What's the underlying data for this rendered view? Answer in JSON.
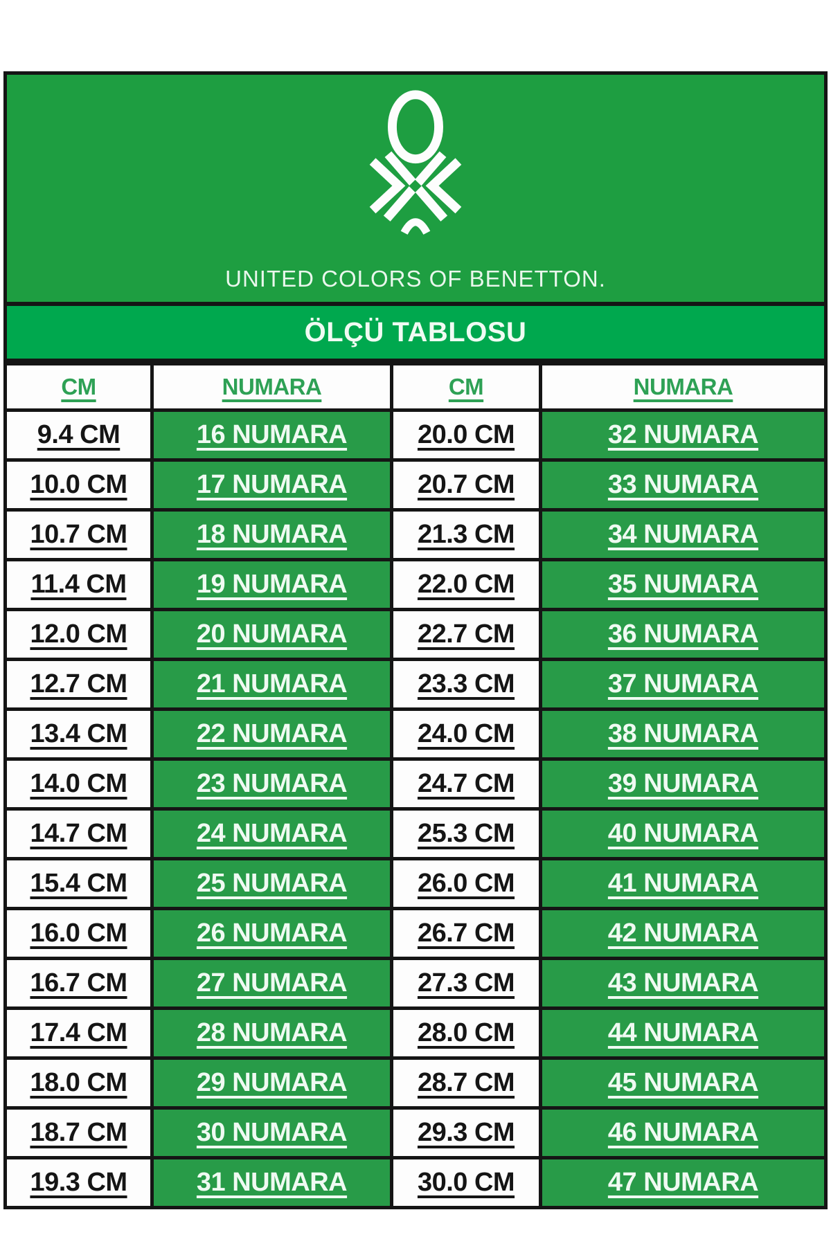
{
  "brand": {
    "name": "UNITED COLORS OF BENETTON.",
    "logo_icon": "benetton-knot-icon"
  },
  "banner": {
    "title": "ÖLÇÜ TABLOSU"
  },
  "chart_data": {
    "type": "table",
    "title": "ÖLÇÜ TABLOSU",
    "columns": [
      "CM",
      "NUMARA",
      "CM",
      "NUMARA"
    ],
    "rows": [
      [
        "9.4 CM",
        "16 NUMARA",
        "20.0 CM",
        "32 NUMARA"
      ],
      [
        "10.0 CM",
        "17 NUMARA",
        "20.7 CM",
        "33 NUMARA"
      ],
      [
        "10.7 CM",
        "18 NUMARA",
        "21.3 CM",
        "34 NUMARA"
      ],
      [
        "11.4 CM",
        "19 NUMARA",
        "22.0 CM",
        "35 NUMARA"
      ],
      [
        "12.0 CM",
        "20 NUMARA",
        "22.7 CM",
        "36 NUMARA"
      ],
      [
        "12.7 CM",
        "21 NUMARA",
        "23.3 CM",
        "37 NUMARA"
      ],
      [
        "13.4 CM",
        "22 NUMARA",
        "24.0 CM",
        "38 NUMARA"
      ],
      [
        "14.0 CM",
        "23 NUMARA",
        "24.7 CM",
        "39 NUMARA"
      ],
      [
        "14.7 CM",
        "24 NUMARA",
        "25.3 CM",
        "40 NUMARA"
      ],
      [
        "15.4 CM",
        "25 NUMARA",
        "26.0 CM",
        "41 NUMARA"
      ],
      [
        "16.0 CM",
        "26 NUMARA",
        "26.7 CM",
        "42 NUMARA"
      ],
      [
        "16.7 CM",
        "27 NUMARA",
        "27.3 CM",
        "43 NUMARA"
      ],
      [
        "17.4 CM",
        "28 NUMARA",
        "28.0 CM",
        "44 NUMARA"
      ],
      [
        "18.0 CM",
        "29 NUMARA",
        "28.7 CM",
        "45 NUMARA"
      ],
      [
        "18.7 CM",
        "30 NUMARA",
        "29.3 CM",
        "46 NUMARA"
      ],
      [
        "19.3 CM",
        "31 NUMARA",
        "30.0 CM",
        "47 NUMARA"
      ]
    ]
  },
  "colors": {
    "logo_green": "#1E9E41",
    "banner_green": "#00A84E",
    "cell_green": "#289B48",
    "header_text_green": "#2EA155",
    "border_black": "#151515",
    "cm_text": "#151515",
    "numara_text": "#EFFAF2",
    "brand_text": "#E9F7EC"
  }
}
